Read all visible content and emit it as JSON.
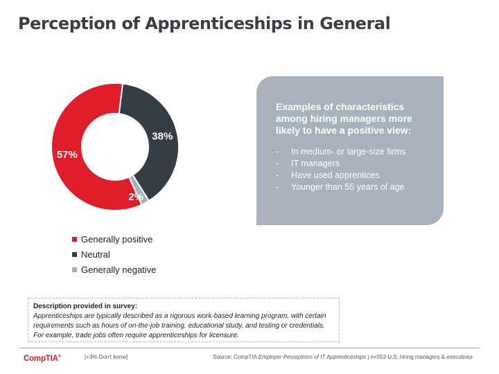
{
  "title": "Perception of Apprenticeships in General",
  "chart_data": {
    "type": "pie",
    "donut": true,
    "categories": [
      "Generally positive",
      "Neutral",
      "Generally negative"
    ],
    "values": [
      57,
      38,
      2
    ],
    "value_labels": [
      "57%",
      "38%",
      "2%"
    ],
    "colors": [
      "#e01e2b",
      "#353d45",
      "#a8b2bd"
    ],
    "start_category_order": [
      1,
      2,
      0
    ],
    "legend_position": "bottom"
  },
  "callout": {
    "heading": "Examples of characteristics among hiring managers more likely to have a positive view:",
    "items": [
      "In medium- or large-size firms",
      "IT managers",
      "Have used apprentices",
      "Younger than 55 years of age"
    ],
    "bullet": "-"
  },
  "survey": {
    "label": "Description provided in survey:",
    "text": "Apprenticeships are typically described as a rigorous work-based learning program, with certain requirements such as hours of on-the-job training, educational study, and testing or credentials. For example, trade jobs often require apprenticeships for licensure."
  },
  "footer": {
    "logo": "CompTIA",
    "logo_mark": "®",
    "dont_know": "[+3% Don't know]",
    "source_prefix": "Source: CompTIA ",
    "source_title": "Employer Perceptions of IT Apprenticeships",
    "source_suffix": " | n=553 U.S. hiring managers & executives"
  }
}
